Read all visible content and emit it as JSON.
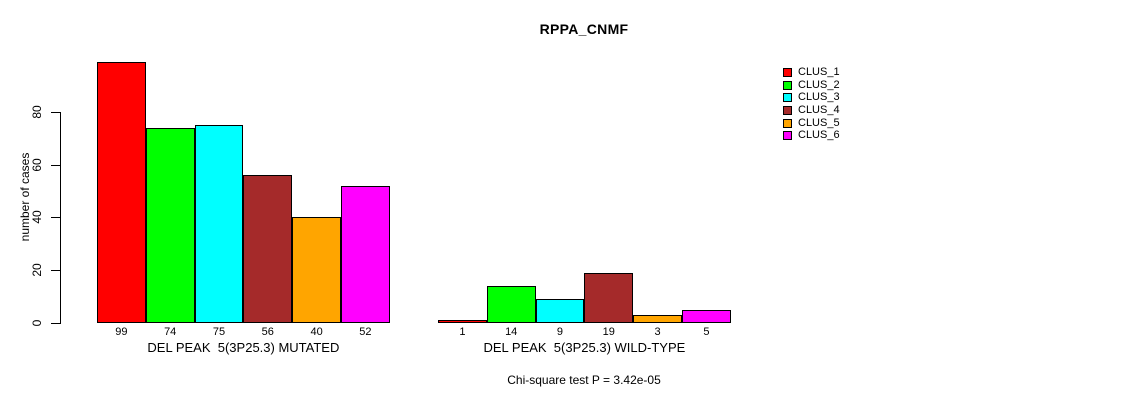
{
  "footer": {
    "stat_text": "Chi-square test P = 3.42e-05"
  },
  "chart_data": {
    "type": "bar",
    "title": "RPPA_CNMF",
    "xlabel": "",
    "ylabel": "number of cases",
    "ylim": [
      0,
      80
    ],
    "yticks": [
      0,
      20,
      40,
      60,
      80
    ],
    "grid": false,
    "legend_position": "top-right",
    "bar_value_labels": true,
    "categories": [
      "DEL PEAK  5(3P25.3) MUTATED",
      "DEL PEAK  5(3P25.3) WILD-TYPE"
    ],
    "category_keys": [
      "mutated",
      "wild-type"
    ],
    "series": [
      {
        "name": "CLUS_1",
        "color": "#FF0000",
        "values": [
          99,
          1
        ]
      },
      {
        "name": "CLUS_2",
        "color": "#00FF00",
        "values": [
          74,
          14
        ]
      },
      {
        "name": "CLUS_3",
        "color": "#00FFFF",
        "values": [
          75,
          9
        ]
      },
      {
        "name": "CLUS_4",
        "color": "#A52A2A",
        "values": [
          56,
          19
        ]
      },
      {
        "name": "CLUS_5",
        "color": "#FFA500",
        "values": [
          40,
          3
        ]
      },
      {
        "name": "CLUS_6",
        "color": "#FF00FF",
        "values": [
          52,
          5
        ]
      }
    ],
    "annotation": "Chi-square test P = 3.42e-05"
  }
}
